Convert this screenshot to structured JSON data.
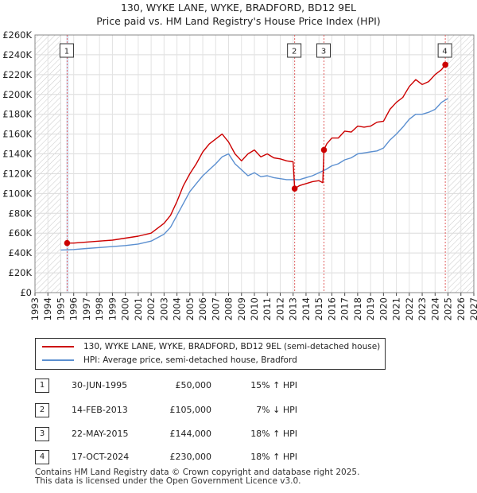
{
  "header": {
    "title_line1": "130, WYKE LANE, WYKE, BRADFORD, BD12 9EL",
    "title_line2": "Price paid vs. HM Land Registry's House Price Index (HPI)"
  },
  "chart_data": {
    "type": "line",
    "title": "130, WYKE LANE, WYKE, BRADFORD, BD12 9EL — Price paid vs. HM Land Registry's House Price Index (HPI)",
    "xlabel": "",
    "ylabel": "",
    "xlim": [
      1993,
      2027
    ],
    "ylim": [
      0,
      260000
    ],
    "grid": true,
    "x_ticks": [
      1993,
      1994,
      1995,
      1996,
      1997,
      1998,
      1999,
      2000,
      2001,
      2002,
      2003,
      2004,
      2005,
      2006,
      2007,
      2008,
      2009,
      2010,
      2011,
      2012,
      2013,
      2014,
      2015,
      2016,
      2017,
      2018,
      2019,
      2020,
      2021,
      2022,
      2023,
      2024,
      2025,
      2026,
      2027
    ],
    "y_ticks": [
      0,
      20000,
      40000,
      60000,
      80000,
      100000,
      120000,
      140000,
      160000,
      180000,
      200000,
      220000,
      240000,
      260000
    ],
    "y_tick_labels": [
      "£0",
      "£20K",
      "£40K",
      "£60K",
      "£80K",
      "£100K",
      "£120K",
      "£140K",
      "£160K",
      "£180K",
      "£200K",
      "£220K",
      "£240K",
      "£260K"
    ],
    "hatched_ranges": [
      [
        1993,
        1995.0
      ],
      [
        2025.0,
        2027
      ]
    ],
    "colors": {
      "property": "#cc0000",
      "hpi": "#5b8fd0",
      "marker_line": "#e06060",
      "shade": "#dde6f5"
    },
    "series": [
      {
        "name": "130, WYKE LANE, WYKE, BRADFORD, BD12 9EL (semi-detached house)",
        "x": [
          1995.5,
          1996,
          1997,
          1998,
          1999,
          2000,
          2001,
          2002,
          2003,
          2003.5,
          2004,
          2004.5,
          2005,
          2005.5,
          2006,
          2006.5,
          2007,
          2007.5,
          2008,
          2008.5,
          2009,
          2009.5,
          2010,
          2010.5,
          2011,
          2011.5,
          2012,
          2012.5,
          2013.0,
          2013.12,
          2013.5,
          2014,
          2014.5,
          2015,
          2015.3,
          2015.39,
          2015.6,
          2016,
          2016.5,
          2017,
          2017.5,
          2018,
          2018.5,
          2019,
          2019.5,
          2020,
          2020.5,
          2021,
          2021.5,
          2022,
          2022.5,
          2023,
          2023.5,
          2024,
          2024.5,
          2024.79,
          2025.0
        ],
        "values": [
          50000,
          50000,
          51000,
          52000,
          53000,
          55000,
          57000,
          60000,
          70000,
          78000,
          92000,
          108000,
          120000,
          130000,
          142000,
          150000,
          155000,
          160000,
          152000,
          140000,
          133000,
          140000,
          144000,
          137000,
          140000,
          136000,
          135000,
          133000,
          132000,
          105000,
          108000,
          110000,
          112000,
          113000,
          111000,
          144000,
          150000,
          156000,
          156000,
          163000,
          162000,
          168000,
          167000,
          168000,
          172000,
          173000,
          185000,
          192000,
          197000,
          208000,
          215000,
          210000,
          213000,
          220000,
          225000,
          230000,
          232000
        ]
      },
      {
        "name": "HPI: Average price, semi-detached house, Bradford",
        "x": [
          1995.0,
          1996,
          1997,
          1998,
          1999,
          2000,
          2001,
          2002,
          2003,
          2003.5,
          2004,
          2004.5,
          2005,
          2005.5,
          2006,
          2006.5,
          2007,
          2007.5,
          2008,
          2008.5,
          2009,
          2009.5,
          2010,
          2010.5,
          2011,
          2011.5,
          2012,
          2012.5,
          2013,
          2013.5,
          2014,
          2014.5,
          2015,
          2015.5,
          2016,
          2016.5,
          2017,
          2017.5,
          2018,
          2018.5,
          2019,
          2019.5,
          2020,
          2020.5,
          2021,
          2021.5,
          2022,
          2022.5,
          2023,
          2023.5,
          2024,
          2024.5,
          2025.0
        ],
        "values": [
          43000,
          43500,
          44500,
          45500,
          46500,
          47500,
          49000,
          52000,
          59000,
          66000,
          78000,
          90000,
          102000,
          110000,
          118000,
          124000,
          130000,
          137000,
          140000,
          130000,
          124000,
          118000,
          121000,
          117000,
          118000,
          116000,
          115000,
          114000,
          114000,
          114000,
          116000,
          118000,
          121000,
          124000,
          128000,
          130000,
          134000,
          136000,
          140000,
          141000,
          142000,
          143000,
          146000,
          154000,
          160000,
          167000,
          175000,
          180000,
          180000,
          182000,
          185000,
          192000,
          196000
        ]
      }
    ],
    "sales": [
      {
        "label": "1",
        "x": 1995.49,
        "value": 50000
      },
      {
        "label": "2",
        "x": 2013.12,
        "value": 105000
      },
      {
        "label": "3",
        "x": 2015.39,
        "value": 144000
      },
      {
        "label": "4",
        "x": 2024.79,
        "value": 230000
      }
    ]
  },
  "legend": {
    "items": [
      {
        "label": "130, WYKE LANE, WYKE, BRADFORD, BD12 9EL (semi-detached house)",
        "color": "#cc0000"
      },
      {
        "label": "HPI: Average price, semi-detached house, Bradford",
        "color": "#5b8fd0"
      }
    ]
  },
  "table": {
    "rows": [
      {
        "num": "1",
        "date": "30-JUN-1995",
        "price": "£50,000",
        "hpi": "15% ↑ HPI"
      },
      {
        "num": "2",
        "date": "14-FEB-2013",
        "price": "£105,000",
        "hpi": "7% ↓ HPI"
      },
      {
        "num": "3",
        "date": "22-MAY-2015",
        "price": "£144,000",
        "hpi": "18% ↑ HPI"
      },
      {
        "num": "4",
        "date": "17-OCT-2024",
        "price": "£230,000",
        "hpi": "18% ↑ HPI"
      }
    ]
  },
  "footer": {
    "line1": "Contains HM Land Registry data © Crown copyright and database right 2025.",
    "line2": "This data is licensed under the Open Government Licence v3.0."
  }
}
